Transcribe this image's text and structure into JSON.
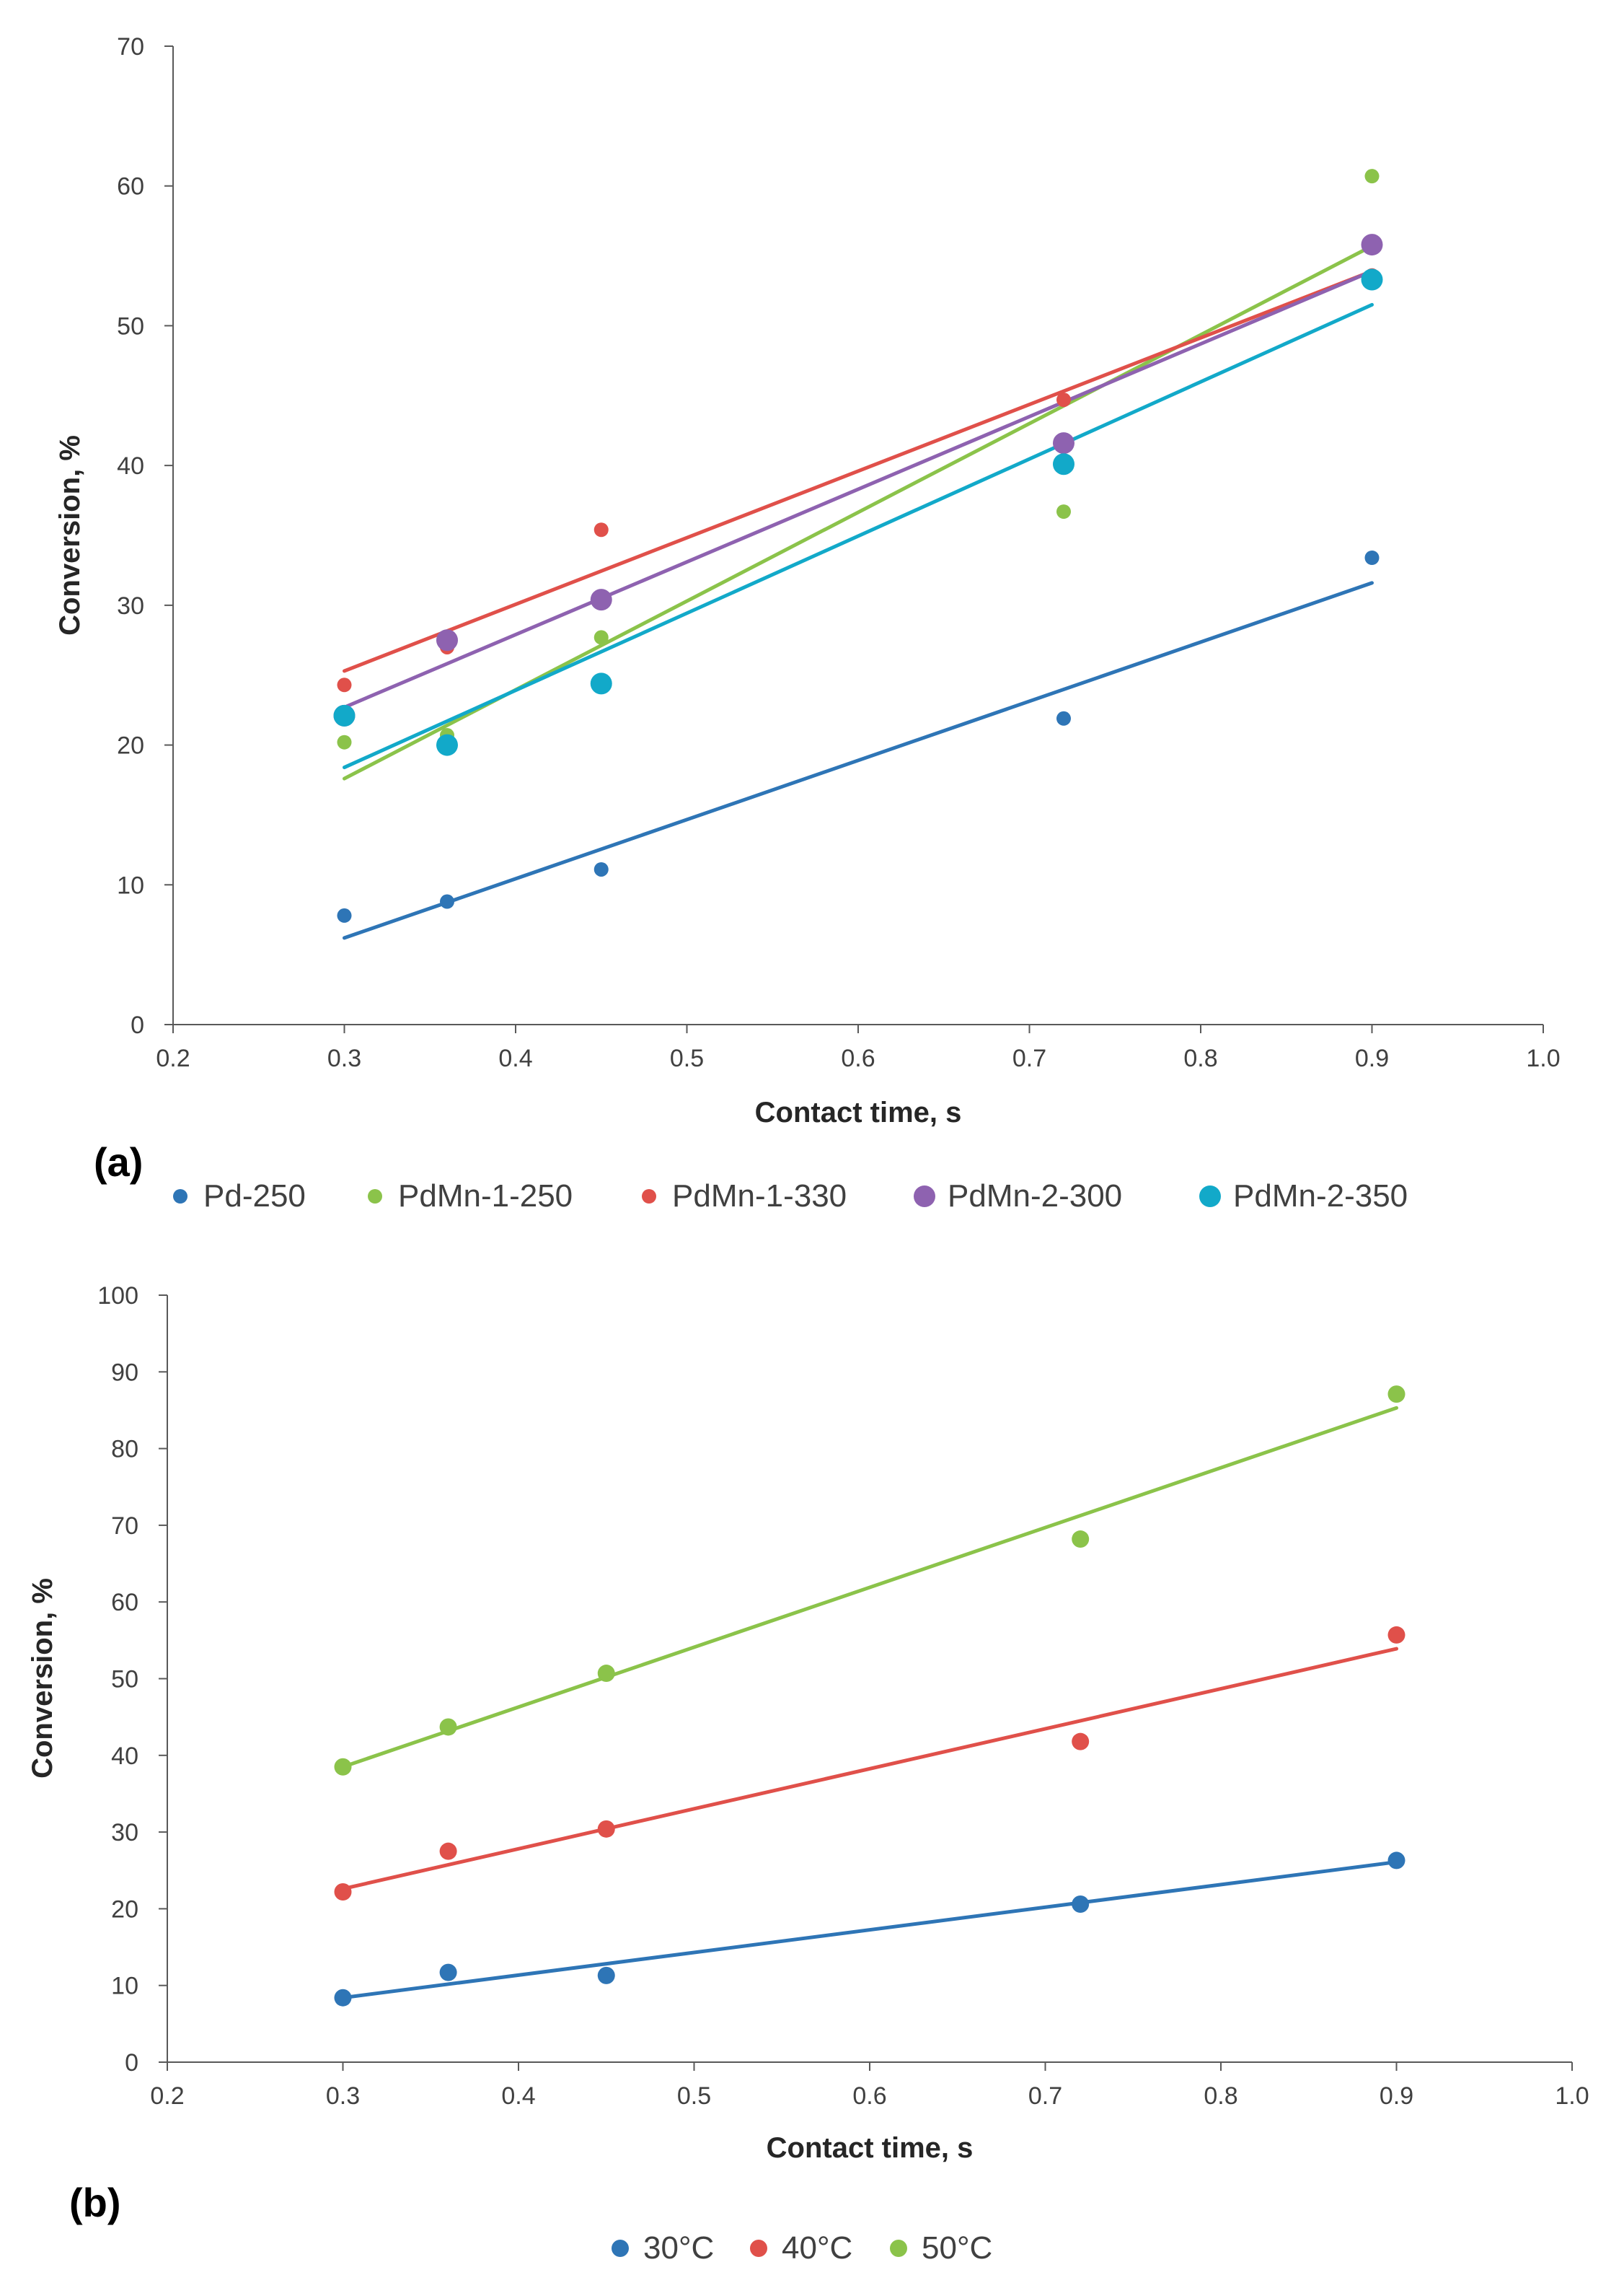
{
  "chart_data": [
    {
      "type": "scatter",
      "panel_label": "(a)",
      "title": "",
      "xlabel": "Contact time, s",
      "ylabel": "Conversion, %",
      "xlim": [
        0.2,
        1.0
      ],
      "ylim": [
        0,
        70
      ],
      "xticks": [
        0.2,
        0.3,
        0.4,
        0.5,
        0.6,
        0.7,
        0.8,
        0.9,
        1.0
      ],
      "xtick_labels": [
        "0.2",
        "0.3",
        "0.4",
        "0.5",
        "0.6",
        "0.7",
        "0.8",
        "0.9",
        "1.0"
      ],
      "yticks": [
        0,
        10,
        20,
        30,
        40,
        50,
        60,
        70
      ],
      "ytick_labels": [
        "0",
        "10",
        "20",
        "30",
        "40",
        "50",
        "60",
        "70"
      ],
      "grid": false,
      "legend_position": "bottom",
      "trendlines": "linear",
      "series": [
        {
          "name": "Pd-250",
          "color": "#2E75B6",
          "marker": "small",
          "x": [
            0.3,
            0.36,
            0.45,
            0.72,
            0.9
          ],
          "y": [
            7.8,
            8.8,
            11.1,
            21.9,
            33.4
          ],
          "fit": {
            "x": [
              0.3,
              0.9
            ],
            "y": [
              6.2,
              31.6
            ]
          }
        },
        {
          "name": "PdMn-1-250",
          "color": "#8BC34A",
          "marker": "small",
          "x": [
            0.3,
            0.36,
            0.45,
            0.72,
            0.9
          ],
          "y": [
            20.2,
            20.7,
            27.7,
            36.7,
            60.7
          ],
          "fit": {
            "x": [
              0.3,
              0.9
            ],
            "y": [
              17.6,
              55.7
            ]
          }
        },
        {
          "name": "PdMn-1-330",
          "color": "#E0504A",
          "marker": "small",
          "x": [
            0.3,
            0.36,
            0.45,
            0.72,
            0.9
          ],
          "y": [
            24.3,
            27.0,
            35.4,
            44.7,
            53.6
          ],
          "fit": {
            "x": [
              0.3,
              0.9
            ],
            "y": [
              25.3,
              53.9
            ]
          }
        },
        {
          "name": "PdMn-2-300",
          "color": "#8E62B0",
          "marker": "large",
          "x": [
            0.3,
            0.36,
            0.45,
            0.72,
            0.9
          ],
          "y": [
            22.1,
            27.5,
            30.4,
            41.6,
            55.8
          ],
          "fit": {
            "x": [
              0.3,
              0.9
            ],
            "y": [
              22.7,
              53.9
            ]
          }
        },
        {
          "name": "PdMn-2-350",
          "color": "#12A9C9",
          "marker": "large",
          "x": [
            0.3,
            0.36,
            0.45,
            0.72,
            0.9
          ],
          "y": [
            22.1,
            20.0,
            24.4,
            40.1,
            53.3
          ],
          "fit": {
            "x": [
              0.3,
              0.9
            ],
            "y": [
              18.4,
              51.5
            ]
          }
        }
      ]
    },
    {
      "type": "scatter",
      "panel_label": "(b)",
      "title": "",
      "xlabel": "Contact time, s",
      "ylabel": "Conversion, %",
      "xlim": [
        0.2,
        1.0
      ],
      "ylim": [
        0,
        100
      ],
      "xticks": [
        0.2,
        0.3,
        0.4,
        0.5,
        0.6,
        0.7,
        0.8,
        0.9,
        1.0
      ],
      "xtick_labels": [
        "0.2",
        "0.3",
        "0.4",
        "0.5",
        "0.6",
        "0.7",
        "0.8",
        "0.9",
        "1.0"
      ],
      "yticks": [
        0,
        10,
        20,
        30,
        40,
        50,
        60,
        70,
        80,
        90,
        100
      ],
      "ytick_labels": [
        "0",
        "10",
        "20",
        "30",
        "40",
        "50",
        "60",
        "70",
        "80",
        "90",
        "100"
      ],
      "grid": false,
      "legend_position": "bottom",
      "trendlines": "linear",
      "series": [
        {
          "name": "30°C",
          "color": "#2E75B6",
          "marker": "medium",
          "x": [
            0.3,
            0.36,
            0.45,
            0.72,
            0.9
          ],
          "y": [
            8.4,
            11.7,
            11.3,
            20.6,
            26.3
          ],
          "fit": {
            "x": [
              0.3,
              0.9
            ],
            "y": [
              8.4,
              26.1
            ]
          }
        },
        {
          "name": "40°C",
          "color": "#E0504A",
          "marker": "medium",
          "x": [
            0.3,
            0.36,
            0.45,
            0.72,
            0.9
          ],
          "y": [
            22.2,
            27.5,
            30.4,
            41.8,
            55.7
          ],
          "fit": {
            "x": [
              0.3,
              0.9
            ],
            "y": [
              22.6,
              53.9
            ]
          }
        },
        {
          "name": "50°C",
          "color": "#8BC34A",
          "marker": "medium",
          "x": [
            0.3,
            0.36,
            0.45,
            0.72,
            0.9
          ],
          "y": [
            38.5,
            43.7,
            50.7,
            68.2,
            87.1
          ],
          "fit": {
            "x": [
              0.3,
              0.9
            ],
            "y": [
              38.5,
              85.3
            ]
          }
        }
      ]
    }
  ]
}
